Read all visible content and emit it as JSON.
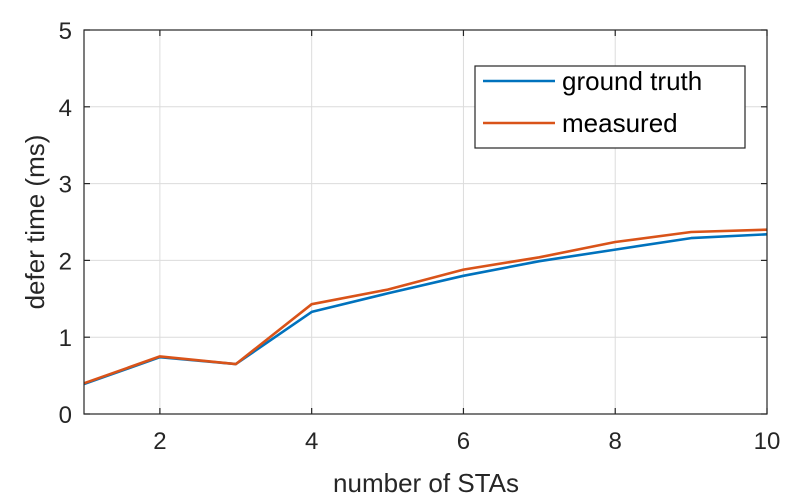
{
  "chart_data": {
    "type": "line",
    "xlabel": "number of STAs",
    "ylabel": "defer time (ms)",
    "xlim": [
      1,
      10
    ],
    "ylim": [
      0,
      5
    ],
    "xticks": [
      2,
      4,
      6,
      8,
      10
    ],
    "yticks": [
      0,
      1,
      2,
      3,
      4,
      5
    ],
    "grid": true,
    "legend_position": "top-right",
    "x": [
      1,
      2,
      3,
      4,
      5,
      6,
      7,
      8,
      9,
      10
    ],
    "series": [
      {
        "name": "ground truth",
        "color": "#0072BD",
        "values": [
          0.39,
          0.74,
          0.65,
          1.33,
          1.57,
          1.8,
          1.99,
          2.14,
          2.29,
          2.34
        ]
      },
      {
        "name": "measured",
        "color": "#D95319",
        "values": [
          0.4,
          0.75,
          0.65,
          1.43,
          1.62,
          1.88,
          2.04,
          2.24,
          2.37,
          2.4
        ]
      }
    ]
  }
}
